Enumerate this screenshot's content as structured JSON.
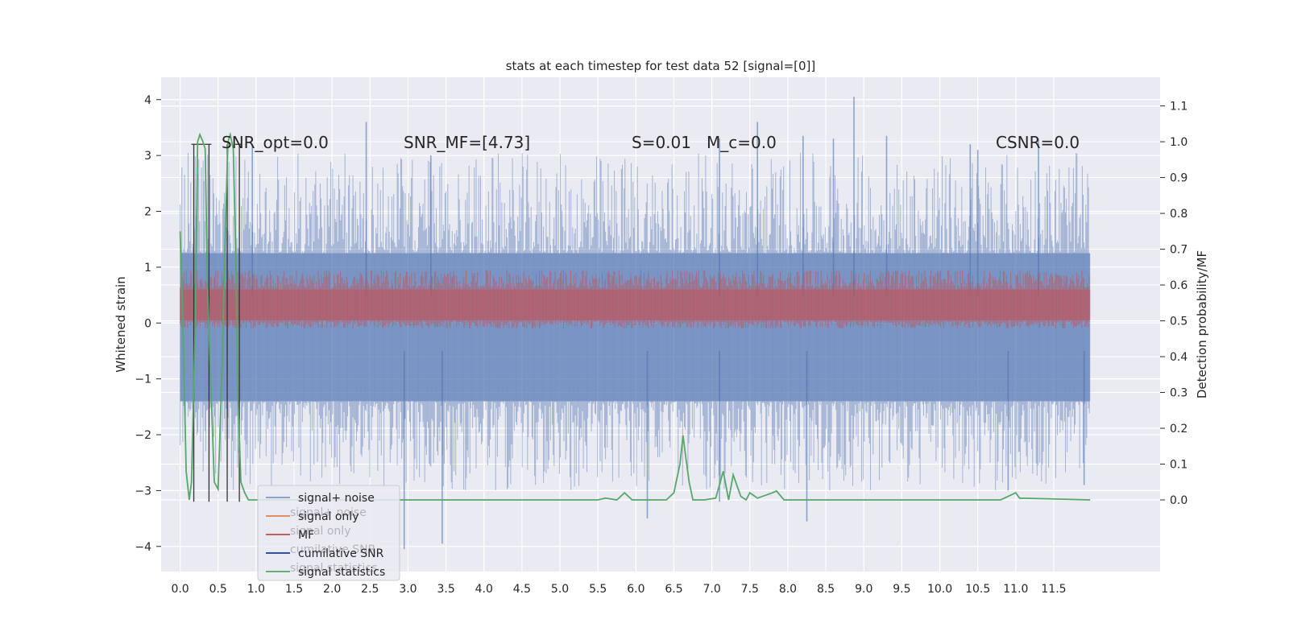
{
  "chart_data": {
    "type": "line",
    "title": "stats at each timestep for test data 52 [signal=[0]]",
    "xlabel": "",
    "ylabel": "Whitened strain",
    "y2label": "Detection probability/MF",
    "xlim": [
      -0.25,
      12.9
    ],
    "ylim": [
      -4.45,
      4.4
    ],
    "y2lim": [
      -0.2,
      1.18
    ],
    "grid": true,
    "x_ticks": [
      0.0,
      0.5,
      1.0,
      1.5,
      2.0,
      2.5,
      3.0,
      3.5,
      4.0,
      4.5,
      5.0,
      5.5,
      6.0,
      6.5,
      7.0,
      7.5,
      8.0,
      8.5,
      9.0,
      9.5,
      10.0,
      10.5,
      11.0,
      11.5
    ],
    "x_tick_labels": [
      "0.0",
      "0.5",
      "1.0",
      "1.5",
      "2.0",
      "2.5",
      "3.0",
      "3.5",
      "4.0",
      "4.5",
      "5.0",
      "5.5",
      "6.0",
      "6.5",
      "7.0",
      "7.5",
      "8.0",
      "8.5",
      "9.0",
      "9.5",
      "10.0",
      "10.5",
      "11.0",
      "11.5"
    ],
    "y_ticks": [
      -4,
      -3,
      -2,
      -1,
      0,
      1,
      2,
      3,
      4
    ],
    "y_tick_labels": [
      "−4",
      "−3",
      "−2",
      "−1",
      "0",
      "1",
      "2",
      "3",
      "4"
    ],
    "y2_ticks": [
      0.0,
      0.1,
      0.2,
      0.3,
      0.4,
      0.5,
      0.6,
      0.7,
      0.8,
      0.9,
      1.0,
      1.1
    ],
    "y2_tick_labels": [
      "0.0",
      "0.1",
      "0.2",
      "0.3",
      "0.4",
      "0.5",
      "0.6",
      "0.7",
      "0.8",
      "0.9",
      "1.0",
      "1.1"
    ],
    "legend": {
      "placement": "lower-left",
      "entries": [
        {
          "label": "signal+ noise",
          "color": "#4c72b0"
        },
        {
          "label": "signal only",
          "color": "#dd8452"
        },
        {
          "label": "MF",
          "color": "#c44e52"
        },
        {
          "label": "cumilative SNR",
          "color": "#1f3f8f"
        },
        {
          "label": "signal statistics",
          "color": "#55a868"
        }
      ],
      "ghost_labels": [
        "signal+ noise",
        "signal only",
        "cumilative SNR",
        "signal statistics"
      ]
    },
    "annotations": [
      {
        "text": "SNR_opt=0.0",
        "x": 0.2,
        "y": 3.2
      },
      {
        "text": "SNR_MF=[4.73]",
        "x": 2.6,
        "y": 3.2
      },
      {
        "text": "S=0.01",
        "x": 5.6,
        "y": 3.2
      },
      {
        "text": "M_c=0.0",
        "x": 6.6,
        "y": 3.2
      },
      {
        "text": "CSNR=0.0",
        "x": 10.4,
        "y": 3.2
      }
    ],
    "series": [
      {
        "name": "signal+ noise",
        "color": "#4c72b0",
        "axis": "left",
        "x_range": [
          0.0,
          11.98
        ],
        "envelope_pos": 1.25,
        "envelope_neg": -1.4,
        "peaks": [
          [
            0.95,
            3.2
          ],
          [
            2.45,
            3.6
          ],
          [
            3.3,
            3.0
          ],
          [
            7.1,
            3.3
          ],
          [
            7.6,
            3.6
          ],
          [
            8.2,
            3.35
          ],
          [
            8.6,
            3.3
          ],
          [
            8.87,
            4.05
          ],
          [
            9.3,
            3.35
          ],
          [
            10.4,
            3.2
          ],
          [
            10.5,
            3.1
          ],
          [
            11.3,
            3.3
          ]
        ],
        "troughs": [
          [
            2.95,
            -4.05
          ],
          [
            3.45,
            -3.95
          ],
          [
            6.15,
            -3.5
          ],
          [
            7.1,
            -3.2
          ],
          [
            8.25,
            -3.55
          ],
          [
            10.9,
            -3.0
          ],
          [
            11.9,
            -2.9
          ]
        ]
      },
      {
        "name": "MF",
        "color": "#c44e52",
        "axis": "left",
        "x_range": [
          0.0,
          11.98
        ],
        "band": [
          -0.05,
          0.85
        ]
      },
      {
        "name": "signal statistics",
        "color": "#55a868",
        "axis": "right",
        "x": [
          0.0,
          0.03,
          0.08,
          0.12,
          0.15,
          0.2,
          0.23,
          0.26,
          0.3,
          0.33,
          0.36,
          0.4,
          0.45,
          0.5,
          0.55,
          0.6,
          0.63,
          0.66,
          0.7,
          0.73,
          0.76,
          0.8,
          0.85,
          0.9,
          5.5,
          5.6,
          5.75,
          5.85,
          5.95,
          6.4,
          6.5,
          6.58,
          6.62,
          6.65,
          6.7,
          6.75,
          6.9,
          7.05,
          7.15,
          7.22,
          7.28,
          7.38,
          7.45,
          7.5,
          7.6,
          7.8,
          7.85,
          7.95,
          8.0,
          8.2,
          8.5,
          10.8,
          10.9,
          11.0,
          11.05,
          11.98
        ],
        "y": [
          0.75,
          0.55,
          0.08,
          0.0,
          0.05,
          0.5,
          1.0,
          1.02,
          1.0,
          0.98,
          0.6,
          0.35,
          0.05,
          0.03,
          0.35,
          0.8,
          1.0,
          1.02,
          0.98,
          0.7,
          0.3,
          0.05,
          0.02,
          0.0,
          0.0,
          0.005,
          0.0,
          0.02,
          0.0,
          0.0,
          0.02,
          0.1,
          0.18,
          0.13,
          0.05,
          0.0,
          0.0,
          0.005,
          0.08,
          0.0,
          0.07,
          0.01,
          0.0,
          0.02,
          0.005,
          0.02,
          0.025,
          0.0,
          0.0,
          0.0,
          0.0,
          0.0,
          0.01,
          0.02,
          0.005,
          0.0
        ]
      }
    ],
    "vlines": {
      "color": "#333333",
      "x": [
        0.18,
        0.38,
        0.62,
        0.78
      ],
      "y_range": [
        -3.2,
        3.2
      ]
    }
  }
}
